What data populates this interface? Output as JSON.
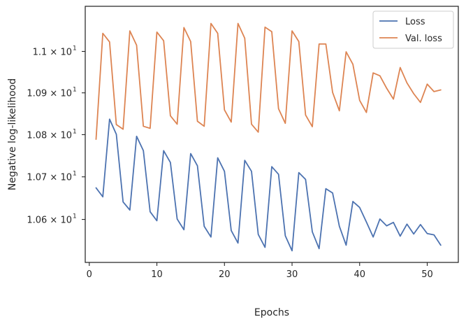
{
  "chart_data": {
    "type": "line",
    "xlabel": "Epochs",
    "ylabel": "Negative log-likelihood",
    "xlim": [
      -0.6,
      54.6
    ],
    "ylim": [
      10.5,
      11.11
    ],
    "xticks": [
      0,
      10,
      20,
      30,
      40,
      50
    ],
    "yticks": [
      {
        "value": 10.6,
        "label": "1.06 × 10"
      },
      {
        "value": 10.7,
        "label": "1.07 × 10"
      },
      {
        "value": 10.8,
        "label": "1.08 × 10"
      },
      {
        "value": 10.9,
        "label": "1.09 × 10"
      },
      {
        "value": 11.0,
        "label": "1.1 × 10"
      }
    ],
    "ytick_exponent": "1",
    "y_scale": "log",
    "grid": false,
    "legend_position": "top-right",
    "x": [
      1,
      2,
      3,
      4,
      5,
      6,
      7,
      8,
      9,
      10,
      11,
      12,
      13,
      14,
      15,
      16,
      17,
      18,
      19,
      20,
      21,
      22,
      23,
      24,
      25,
      26,
      27,
      28,
      29,
      30,
      31,
      32,
      33,
      34,
      35,
      36,
      37,
      38,
      39,
      40,
      41,
      42,
      43,
      44,
      45,
      46,
      47,
      48,
      49,
      50,
      51,
      52
    ],
    "series": [
      {
        "name": "Loss",
        "color": "#4c72b0",
        "values": [
          10.674,
          10.653,
          10.837,
          10.801,
          10.641,
          10.622,
          10.796,
          10.762,
          10.618,
          10.597,
          10.762,
          10.734,
          10.601,
          10.576,
          10.755,
          10.726,
          10.584,
          10.559,
          10.745,
          10.713,
          10.574,
          10.545,
          10.739,
          10.713,
          10.565,
          10.535,
          10.724,
          10.706,
          10.562,
          10.527,
          10.71,
          10.694,
          10.571,
          10.532,
          10.672,
          10.662,
          10.584,
          10.54,
          10.642,
          10.628,
          10.594,
          10.559,
          10.601,
          10.585,
          10.593,
          10.561,
          10.589,
          10.566,
          10.588,
          10.567,
          10.564,
          10.54
        ]
      },
      {
        "name": "Val. loss",
        "color": "#dd8452",
        "values": [
          10.789,
          11.044,
          11.023,
          10.824,
          10.813,
          11.05,
          11.015,
          10.82,
          10.815,
          11.047,
          11.026,
          10.845,
          10.825,
          11.058,
          11.024,
          10.832,
          10.82,
          11.068,
          11.044,
          10.859,
          10.83,
          11.068,
          11.032,
          10.825,
          10.806,
          11.059,
          11.048,
          10.862,
          10.827,
          11.05,
          11.024,
          10.847,
          10.819,
          11.018,
          11.018,
          10.901,
          10.857,
          10.999,
          10.969,
          10.882,
          10.853,
          10.948,
          10.941,
          10.911,
          10.885,
          10.961,
          10.924,
          10.898,
          10.877,
          10.921,
          10.903,
          10.907
        ]
      }
    ]
  }
}
